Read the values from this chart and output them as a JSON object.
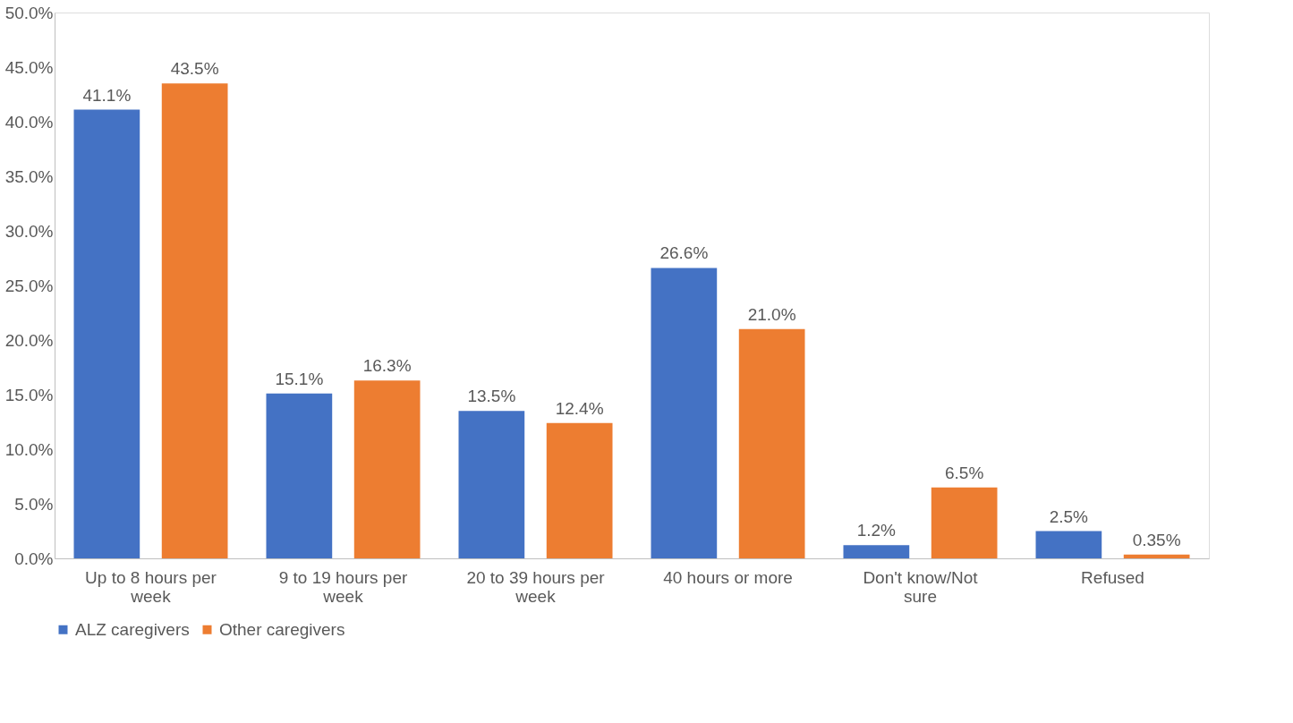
{
  "chart_data": {
    "type": "bar",
    "categories": [
      "Up to 8 hours per week",
      "9 to 19 hours per week",
      "20 to 39 hours per week",
      "40 hours or more",
      "Don't know/Not sure",
      "Refused"
    ],
    "series": [
      {
        "name": "ALZ caregivers",
        "color": "#4472c4",
        "values": [
          41.1,
          15.1,
          13.5,
          26.6,
          1.2,
          2.5
        ],
        "value_labels": [
          "41.1%",
          "15.1%",
          "13.5%",
          "26.6%",
          "1.2%",
          "2.5%"
        ]
      },
      {
        "name": "Other caregivers",
        "color": "#ed7d31",
        "values": [
          43.5,
          16.3,
          12.4,
          21.0,
          6.5,
          0.35
        ],
        "value_labels": [
          "43.5%",
          "16.3%",
          "12.4%",
          "21.0%",
          "6.5%",
          "0.35%"
        ]
      }
    ],
    "ylim": [
      0,
      50
    ],
    "yticks": [
      {
        "value": 0,
        "label": "0.0%"
      },
      {
        "value": 5,
        "label": "5.0%"
      },
      {
        "value": 10,
        "label": "10.0%"
      },
      {
        "value": 15,
        "label": "15.0%"
      },
      {
        "value": 20,
        "label": "20.0%"
      },
      {
        "value": 25,
        "label": "25.0%"
      },
      {
        "value": 30,
        "label": "30.0%"
      },
      {
        "value": 35,
        "label": "35.0%"
      },
      {
        "value": 40,
        "label": "40.0%"
      },
      {
        "value": 45,
        "label": "45.0%"
      },
      {
        "value": 50,
        "label": "50.0%"
      }
    ],
    "grid": false,
    "legend": "bottom"
  }
}
